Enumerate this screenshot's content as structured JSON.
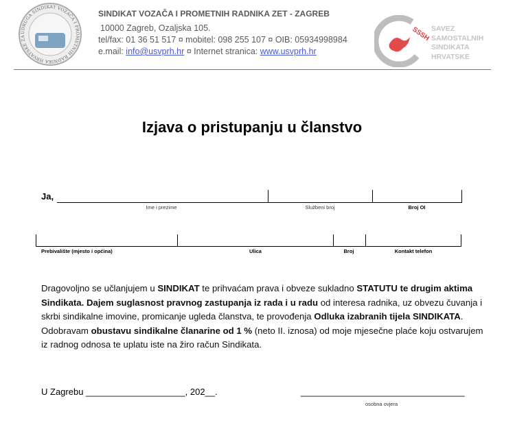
{
  "header": {
    "org_name": "SINDIKAT VOZAČA I PROMETNIH RADNIKA ZET - ZAGREB",
    "address": "10000  Zagreb,  Ozaljska 105.",
    "contact": "tel/fax: 01 36 51 517 ¤ mobitel: 098 255 107 ¤ OIB: 05934998984",
    "email_label": "e.mail: ",
    "email": "info@usvprh.hr",
    "web_label": " ¤  Internet stranica:   ",
    "web": "www.usvprh.hr",
    "left_logo_text": "UDRUGA SINDIKAT VOZAČA I PROMETNIH RADNIKA HRVATSKE ZAGREB",
    "right_logo_abbr": "SSSH",
    "right_logo_lines": [
      "SAVEZ",
      "SAMOSTALNIH",
      "SINDIKATA",
      "HRVATSKE"
    ]
  },
  "title": "Izjava o pristupanju u članstvo",
  "form": {
    "ja": "Ja,",
    "row1_labels": [
      "Ime  i prezime",
      "Službeni broj",
      "Broj OI"
    ],
    "row2_labels": [
      "Prebivalište  (mjesto i općina)",
      "Ulica",
      "Broj",
      "Kontakt  telefon"
    ]
  },
  "paragraph": [
    {
      "t": "Dragovoljno se učlanjujem u ",
      "b": false
    },
    {
      "t": "SINDIKAT",
      "b": true
    },
    {
      "t": " te prihvaćam prava i obveze sukladno ",
      "b": false
    },
    {
      "t": "STATUTU te drugim aktima Sindikata.  Dajem suglasnost pravnog zastupanja iz rada i u radu",
      "b": true
    },
    {
      "t": " od interesa radnika, uz obvezu čuvanja i skrbi sindikalne imovine, promicanje ugleda članstva,  te provođenja ",
      "b": false
    },
    {
      "t": "Odluka  izabranih tijela SINDIKATA",
      "b": true
    },
    {
      "t": ". Odobravam ",
      "b": false
    },
    {
      "t": "obustavu  sindikalne članarine od 1 %",
      "b": true
    },
    {
      "t": "  (neto II. iznosa) od moje mjesečne plaće koju ostvarujem iz radnog odnosa te uplatu iste na žiro račun Sindikata.",
      "b": false
    }
  ],
  "footer": {
    "place_date": "U Zagrebu ____________________, 202__.",
    "signature_line": "_________________________________",
    "signature_label": "osobna ovjera"
  }
}
